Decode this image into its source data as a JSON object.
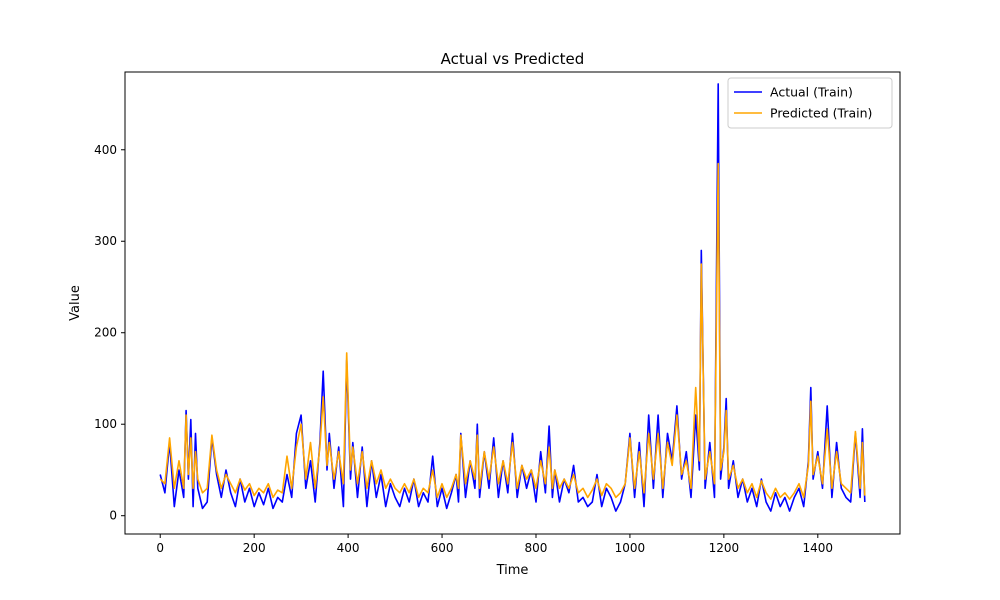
{
  "chart_data": {
    "type": "line",
    "title": "Actual vs Predicted",
    "xlabel": "Time",
    "ylabel": "Value",
    "xlim": [
      -75,
      1575
    ],
    "ylim": [
      -20,
      485
    ],
    "xticks": [
      0,
      200,
      400,
      600,
      800,
      1000,
      1200,
      1400
    ],
    "yticks": [
      0,
      100,
      200,
      300,
      400
    ],
    "grid": false,
    "legend_position": "top-right",
    "series": [
      {
        "name": "Actual (Train)",
        "color": "#0000ff",
        "x": [
          0,
          10,
          20,
          30,
          40,
          50,
          55,
          60,
          65,
          70,
          75,
          80,
          90,
          100,
          110,
          120,
          130,
          140,
          150,
          160,
          170,
          180,
          190,
          200,
          210,
          220,
          230,
          240,
          250,
          260,
          270,
          280,
          290,
          300,
          310,
          320,
          330,
          340,
          347,
          355,
          360,
          370,
          380,
          390,
          397,
          405,
          410,
          420,
          430,
          440,
          450,
          460,
          470,
          480,
          490,
          500,
          510,
          520,
          530,
          540,
          550,
          560,
          570,
          580,
          590,
          600,
          610,
          620,
          630,
          635,
          640,
          650,
          660,
          670,
          675,
          680,
          690,
          700,
          710,
          720,
          730,
          740,
          750,
          760,
          770,
          780,
          790,
          800,
          810,
          820,
          828,
          835,
          840,
          850,
          860,
          870,
          880,
          890,
          900,
          910,
          920,
          930,
          940,
          950,
          960,
          970,
          980,
          990,
          1000,
          1010,
          1020,
          1030,
          1040,
          1050,
          1060,
          1070,
          1080,
          1090,
          1100,
          1110,
          1120,
          1130,
          1140,
          1148,
          1152,
          1160,
          1170,
          1180,
          1188,
          1193,
          1200,
          1205,
          1210,
          1220,
          1230,
          1240,
          1250,
          1260,
          1270,
          1280,
          1290,
          1300,
          1310,
          1320,
          1330,
          1340,
          1350,
          1360,
          1370,
          1380,
          1385,
          1390,
          1400,
          1410,
          1420,
          1430,
          1440,
          1450,
          1460,
          1470,
          1480,
          1490,
          1495,
          1500
        ],
        "y": [
          45,
          25,
          80,
          10,
          50,
          20,
          115,
          40,
          105,
          10,
          90,
          30,
          8,
          15,
          85,
          45,
          20,
          50,
          25,
          10,
          40,
          15,
          30,
          10,
          25,
          12,
          30,
          8,
          20,
          15,
          45,
          20,
          90,
          110,
          30,
          60,
          15,
          80,
          158,
          50,
          90,
          30,
          75,
          10,
          170,
          40,
          80,
          20,
          75,
          10,
          60,
          20,
          45,
          10,
          35,
          20,
          10,
          30,
          15,
          40,
          10,
          25,
          15,
          65,
          10,
          30,
          8,
          25,
          45,
          15,
          90,
          20,
          60,
          30,
          100,
          20,
          70,
          30,
          85,
          20,
          60,
          25,
          90,
          20,
          55,
          30,
          50,
          15,
          70,
          25,
          98,
          20,
          50,
          15,
          40,
          25,
          55,
          15,
          20,
          10,
          15,
          45,
          10,
          30,
          20,
          5,
          15,
          35,
          90,
          20,
          80,
          10,
          110,
          30,
          110,
          20,
          90,
          60,
          120,
          40,
          70,
          20,
          110,
          50,
          290,
          30,
          80,
          20,
          472,
          40,
          75,
          128,
          30,
          60,
          20,
          40,
          15,
          30,
          10,
          40,
          15,
          5,
          25,
          10,
          20,
          5,
          20,
          30,
          10,
          60,
          140,
          40,
          70,
          30,
          120,
          20,
          80,
          30,
          20,
          15,
          90,
          20,
          95,
          15
        ]
      },
      {
        "name": "Predicted (Train)",
        "color": "#ffa500",
        "x": [
          0,
          10,
          20,
          30,
          40,
          50,
          55,
          60,
          65,
          70,
          75,
          80,
          90,
          100,
          110,
          120,
          130,
          140,
          150,
          160,
          170,
          180,
          190,
          200,
          210,
          220,
          230,
          240,
          250,
          260,
          270,
          280,
          290,
          300,
          310,
          320,
          330,
          340,
          347,
          355,
          360,
          370,
          380,
          390,
          397,
          405,
          410,
          420,
          430,
          440,
          450,
          460,
          470,
          480,
          490,
          500,
          510,
          520,
          530,
          540,
          550,
          560,
          570,
          580,
          590,
          600,
          610,
          620,
          630,
          635,
          640,
          650,
          660,
          670,
          675,
          680,
          690,
          700,
          710,
          720,
          730,
          740,
          750,
          760,
          770,
          780,
          790,
          800,
          810,
          820,
          828,
          835,
          840,
          850,
          860,
          870,
          880,
          890,
          900,
          910,
          920,
          930,
          940,
          950,
          960,
          970,
          980,
          990,
          1000,
          1010,
          1020,
          1030,
          1040,
          1050,
          1060,
          1070,
          1080,
          1090,
          1100,
          1110,
          1120,
          1130,
          1140,
          1148,
          1152,
          1160,
          1170,
          1180,
          1188,
          1193,
          1200,
          1205,
          1210,
          1220,
          1230,
          1240,
          1250,
          1260,
          1270,
          1280,
          1290,
          1300,
          1310,
          1320,
          1330,
          1340,
          1350,
          1360,
          1370,
          1380,
          1385,
          1390,
          1400,
          1410,
          1420,
          1430,
          1440,
          1450,
          1460,
          1470,
          1480,
          1490,
          1495,
          1500
        ],
        "y": [
          40,
          35,
          85,
          30,
          60,
          30,
          110,
          45,
          85,
          30,
          70,
          40,
          25,
          30,
          88,
          50,
          30,
          45,
          35,
          25,
          40,
          28,
          35,
          22,
          30,
          25,
          35,
          20,
          28,
          25,
          65,
          30,
          75,
          100,
          40,
          80,
          30,
          75,
          130,
          55,
          80,
          40,
          70,
          35,
          178,
          50,
          75,
          35,
          70,
          30,
          60,
          35,
          50,
          30,
          40,
          30,
          25,
          35,
          25,
          40,
          20,
          30,
          25,
          50,
          20,
          35,
          20,
          30,
          45,
          30,
          88,
          35,
          60,
          40,
          88,
          30,
          70,
          40,
          75,
          35,
          60,
          35,
          80,
          30,
          55,
          40,
          50,
          30,
          60,
          35,
          75,
          30,
          50,
          30,
          40,
          30,
          45,
          25,
          30,
          20,
          28,
          40,
          22,
          35,
          30,
          20,
          25,
          35,
          85,
          30,
          70,
          25,
          90,
          40,
          90,
          30,
          80,
          55,
          110,
          45,
          60,
          30,
          140,
          60,
          275,
          40,
          70,
          35,
          385,
          50,
          70,
          115,
          40,
          55,
          30,
          40,
          25,
          35,
          20,
          38,
          25,
          18,
          30,
          20,
          25,
          18,
          25,
          35,
          20,
          55,
          125,
          45,
          65,
          35,
          95,
          30,
          70,
          35,
          30,
          25,
          92,
          30,
          80,
          22
        ]
      }
    ]
  }
}
